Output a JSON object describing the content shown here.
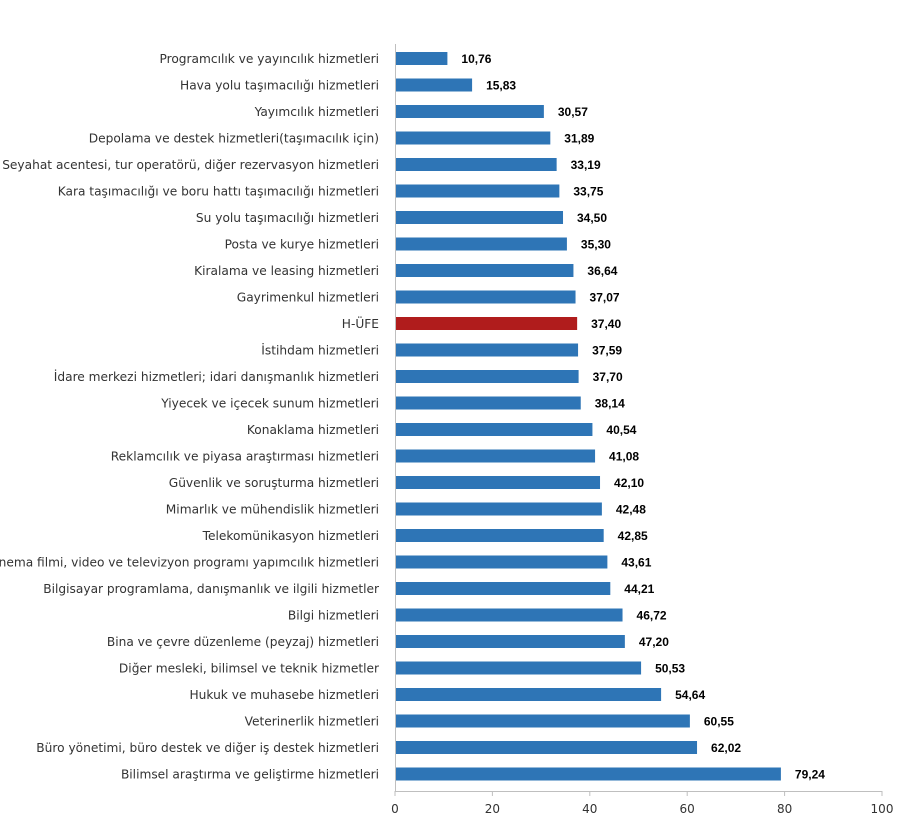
{
  "chart_data": {
    "type": "bar",
    "orientation": "horizontal",
    "categories": [
      "Programcılık ve yayıncılık hizmetleri",
      "Hava yolu taşımacılığı hizmetleri",
      "Yayımcılık hizmetleri",
      "Depolama ve destek hizmetleri(taşımacılık için)",
      "Seyahat acentesi, tur operatörü, diğer rezervasyon hizmetleri",
      "Kara taşımacılığı ve boru hattı taşımacılığı hizmetleri",
      "Su yolu taşımacılığı hizmetleri",
      "Posta ve kurye hizmetleri",
      "Kiralama ve leasing hizmetleri",
      "Gayrimenkul hizmetleri",
      "H-ÜFE",
      "İstihdam hizmetleri",
      "İdare merkezi hizmetleri; idari danışmanlık hizmetleri",
      "Yiyecek ve içecek sunum hizmetleri",
      "Konaklama hizmetleri",
      "Reklamcılık ve piyasa araştırması hizmetleri",
      "Güvenlik ve soruşturma hizmetleri",
      "Mimarlık ve mühendislik hizmetleri",
      "Telekomünikasyon hizmetleri",
      "Sinema filmi, video ve televizyon programı yapımcılık hizmetleri",
      "Bilgisayar programlama, danışmanlık ve ilgili hizmetler",
      "Bilgi hizmetleri",
      "Bina ve çevre düzenleme (peyzaj) hizmetleri",
      "Diğer mesleki, bilimsel ve teknik hizmetler",
      "Hukuk ve muhasebe hizmetleri",
      "Veterinerlik hizmetleri",
      "Büro yönetimi, büro destek ve diğer iş destek hizmetleri",
      "Bilimsel araştırma ve geliştirme hizmetleri"
    ],
    "values": [
      10.76,
      15.83,
      30.57,
      31.89,
      33.19,
      33.75,
      34.5,
      35.3,
      36.64,
      37.07,
      37.4,
      37.59,
      37.7,
      38.14,
      40.54,
      41.08,
      42.1,
      42.48,
      42.85,
      43.61,
      44.21,
      46.72,
      47.2,
      50.53,
      54.64,
      60.55,
      62.02,
      79.24
    ],
    "value_labels": [
      "10,76",
      "15,83",
      "30,57",
      "31,89",
      "33,19",
      "33,75",
      "34,50",
      "35,30",
      "36,64",
      "37,07",
      "37,40",
      "37,59",
      "37,70",
      "38,14",
      "40,54",
      "41,08",
      "42,10",
      "42,48",
      "42,85",
      "43,61",
      "44,21",
      "46,72",
      "47,20",
      "50,53",
      "54,64",
      "60,55",
      "62,02",
      "79,24"
    ],
    "highlight_category": "H-ÜFE",
    "xlim": [
      0,
      100
    ],
    "xticks": [
      0,
      20,
      40,
      60,
      80,
      100
    ],
    "title": "",
    "xlabel": "",
    "ylabel": "",
    "grid": false,
    "legend": "none",
    "colors": {
      "bar": "#2e75b6",
      "highlight": "#b01c1c",
      "axis": "#bfbfbf"
    }
  }
}
